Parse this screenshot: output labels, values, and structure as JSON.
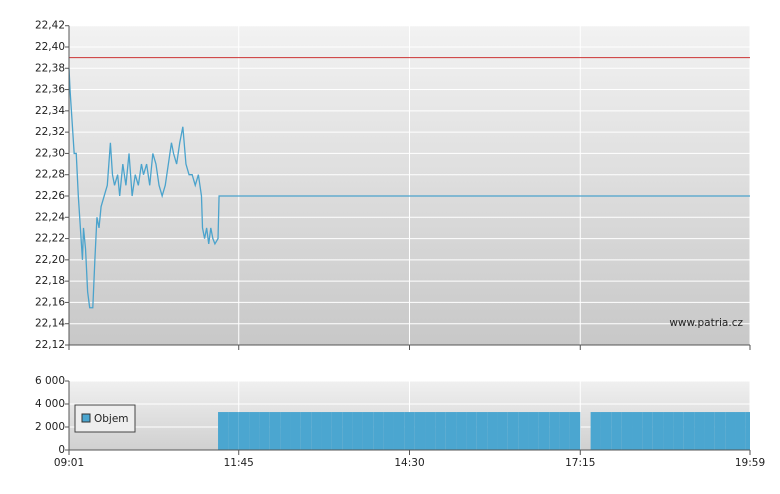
{
  "chart_data": [
    {
      "type": "line",
      "color": "#4ba3cc",
      "annotation": "www.patria.cz",
      "x": [
        "09:01",
        "09:02",
        "09:04",
        "09:06",
        "09:08",
        "09:10",
        "09:12",
        "09:14",
        "09:15",
        "09:17",
        "09:19",
        "09:21",
        "09:24",
        "09:26",
        "09:28",
        "09:30",
        "09:32",
        "09:35",
        "09:38",
        "09:41",
        "09:43",
        "09:45",
        "09:48",
        "09:50",
        "09:53",
        "09:56",
        "09:59",
        "10:02",
        "10:05",
        "10:08",
        "10:11",
        "10:13",
        "10:16",
        "10:19",
        "10:22",
        "10:25",
        "10:28",
        "10:31",
        "10:34",
        "10:37",
        "10:40",
        "10:42",
        "10:45",
        "10:48",
        "10:51",
        "10:54",
        "10:57",
        "11:00",
        "11:03",
        "11:06",
        "11:09",
        "11:10",
        "11:12",
        "11:14",
        "11:16",
        "11:18",
        "11:20",
        "11:22",
        "11:25",
        "11:26",
        "19:59"
      ],
      "values": [
        22.38,
        22.36,
        22.33,
        22.3,
        22.3,
        22.26,
        22.23,
        22.2,
        22.23,
        22.21,
        22.17,
        22.155,
        22.155,
        22.2,
        22.24,
        22.23,
        22.25,
        22.26,
        22.27,
        22.31,
        22.28,
        22.27,
        22.28,
        22.26,
        22.29,
        22.27,
        22.3,
        22.26,
        22.28,
        22.27,
        22.29,
        22.28,
        22.29,
        22.27,
        22.3,
        22.29,
        22.27,
        22.26,
        22.27,
        22.29,
        22.31,
        22.3,
        22.29,
        22.31,
        22.325,
        22.29,
        22.28,
        22.28,
        22.27,
        22.28,
        22.26,
        22.23,
        22.22,
        22.23,
        22.215,
        22.23,
        22.22,
        22.215,
        22.22,
        22.26,
        22.26
      ],
      "reference_line": {
        "value": 22.39,
        "color": "#cc3333"
      },
      "ylim": [
        22.12,
        22.42
      ],
      "yticks": [
        {
          "value": 22.12,
          "label": "22,12"
        },
        {
          "value": 22.14,
          "label": "22,14"
        },
        {
          "value": 22.16,
          "label": "22,16"
        },
        {
          "value": 22.18,
          "label": "22,18"
        },
        {
          "value": 22.2,
          "label": "22,20"
        },
        {
          "value": 22.22,
          "label": "22,22"
        },
        {
          "value": 22.24,
          "label": "22,24"
        },
        {
          "value": 22.26,
          "label": "22,26"
        },
        {
          "value": 22.28,
          "label": "22,28"
        },
        {
          "value": 22.3,
          "label": "22,30"
        },
        {
          "value": 22.32,
          "label": "22,32"
        },
        {
          "value": 22.34,
          "label": "22,34"
        },
        {
          "value": 22.36,
          "label": "22,36"
        },
        {
          "value": 22.38,
          "label": "22,38"
        },
        {
          "value": 22.4,
          "label": "22,40"
        },
        {
          "value": 22.42,
          "label": "22,42"
        }
      ],
      "grid": true
    },
    {
      "type": "bar",
      "legend": "bottom-left",
      "x": [
        "11:25",
        "11:35",
        "11:45",
        "11:55",
        "12:05",
        "12:15",
        "12:25",
        "12:35",
        "12:45",
        "12:55",
        "13:05",
        "13:15",
        "13:25",
        "13:35",
        "13:45",
        "13:55",
        "14:05",
        "14:15",
        "14:25",
        "14:35",
        "14:45",
        "14:55",
        "15:05",
        "15:15",
        "15:25",
        "15:35",
        "15:45",
        "15:55",
        "16:05",
        "16:15",
        "16:25",
        "16:35",
        "16:45",
        "16:55",
        "17:05",
        "17:15",
        "17:25",
        "17:35",
        "17:45",
        "17:55",
        "18:05",
        "18:15",
        "18:25",
        "18:35",
        "18:45",
        "18:55",
        "19:05",
        "19:15",
        "19:25",
        "19:35",
        "19:45",
        "19:55"
      ],
      "series": [
        {
          "name": "Objem",
          "color": "#4ba6d0",
          "values": [
            3300,
            3300,
            3300,
            3300,
            3300,
            3300,
            3300,
            3300,
            3300,
            3300,
            3300,
            3300,
            3300,
            3300,
            3300,
            3300,
            3300,
            3300,
            3300,
            3300,
            3300,
            3300,
            3300,
            3300,
            3300,
            3300,
            3300,
            3300,
            3300,
            3300,
            3300,
            3300,
            3300,
            3300,
            3300,
            0,
            3300,
            3300,
            3300,
            3300,
            3300,
            3300,
            3300,
            3300,
            3300,
            3300,
            3300,
            3300,
            3300,
            3300,
            3300,
            3300
          ]
        }
      ],
      "xlim": [
        "09:01",
        "19:59"
      ],
      "xticks": [
        "09:01",
        "11:45",
        "14:30",
        "17:15",
        "19:59"
      ],
      "ylim": [
        0,
        6000
      ],
      "yticks": [
        0,
        {
          "value": 2000,
          "label": "2 000"
        },
        {
          "value": 4000,
          "label": "4 000"
        },
        {
          "value": 6000,
          "label": "6 000"
        }
      ],
      "grid": true
    }
  ]
}
